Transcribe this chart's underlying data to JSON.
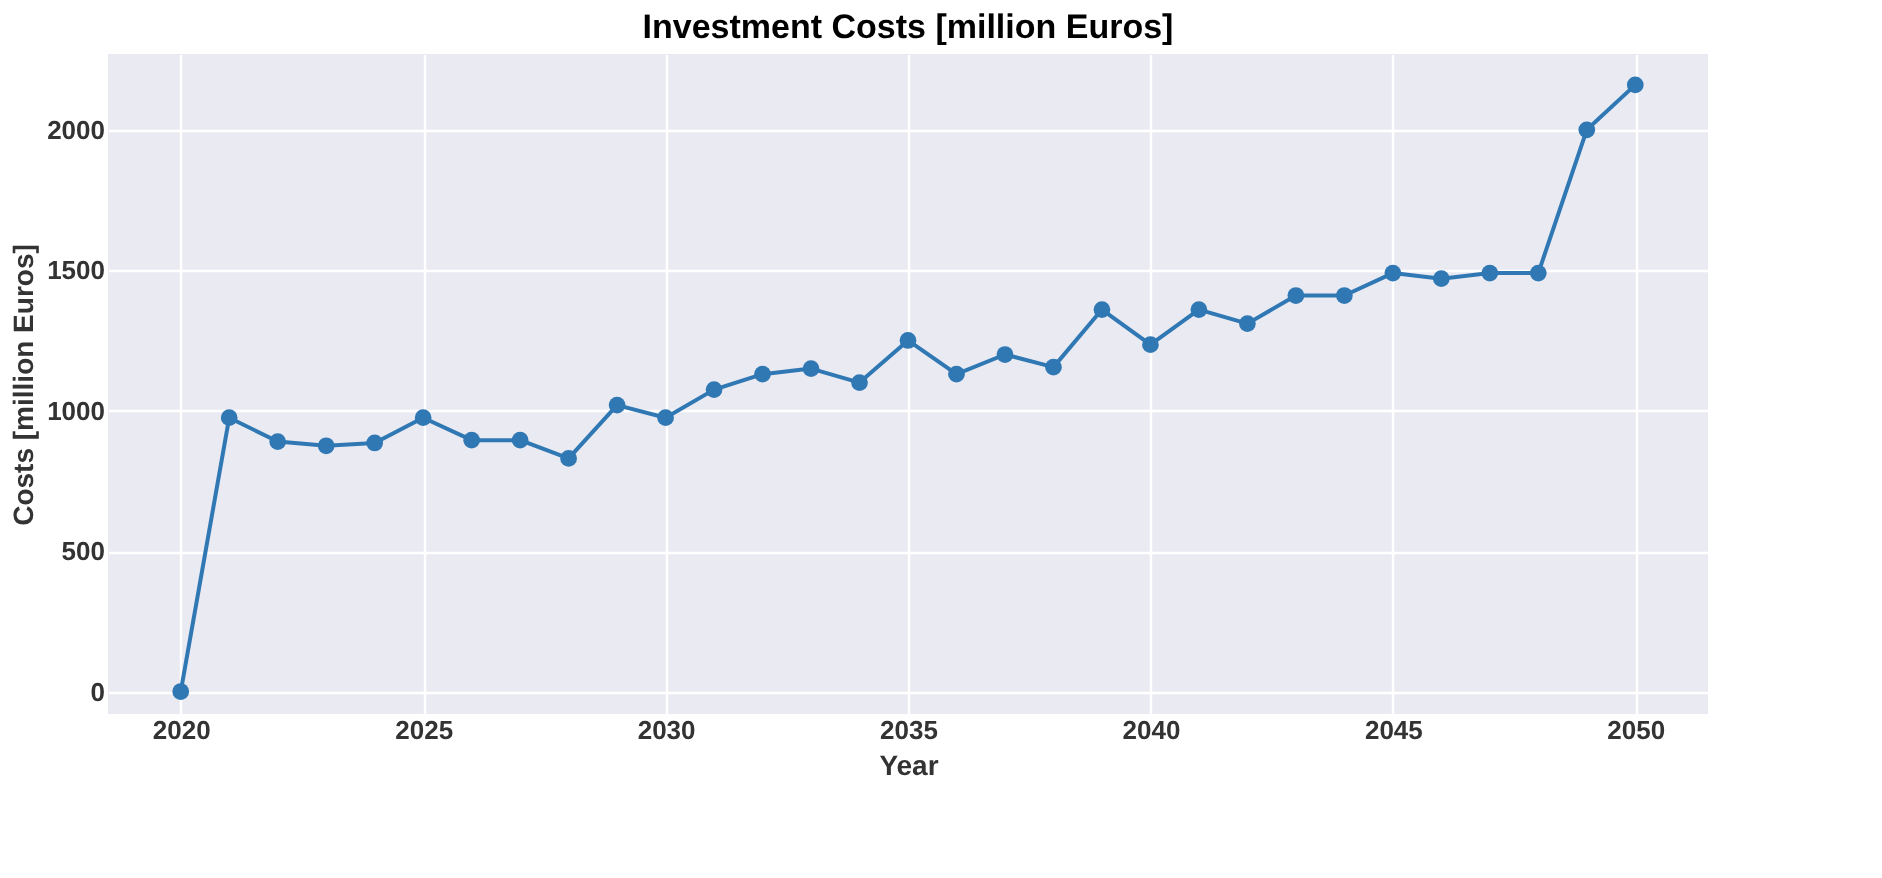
{
  "chart_data": {
    "type": "line",
    "title": "Investment Costs [million Euros]",
    "xlabel": "Year",
    "ylabel": "Costs [million Euros]",
    "x": [
      2020,
      2021,
      2022,
      2023,
      2024,
      2025,
      2026,
      2027,
      2028,
      2029,
      2030,
      2031,
      2032,
      2033,
      2034,
      2035,
      2036,
      2037,
      2038,
      2039,
      2040,
      2041,
      2042,
      2043,
      2044,
      2045,
      2046,
      2047,
      2048,
      2049,
      2050
    ],
    "series": [
      {
        "color": "#2f78b4",
        "values": [
          0,
          975,
          890,
          875,
          885,
          975,
          895,
          895,
          830,
          1020,
          975,
          1075,
          1130,
          1150,
          1100,
          1250,
          1130,
          1200,
          1155,
          1360,
          1235,
          1360,
          1310,
          1410,
          1410,
          1490,
          1470,
          1490,
          1490,
          2000,
          2160
        ]
      }
    ],
    "xlim": [
      2018.5,
      2051.5
    ],
    "xticks": [
      2020,
      2025,
      2030,
      2035,
      2040,
      2045,
      2050
    ],
    "ylim": [
      -80,
      2270
    ],
    "yticks": [
      0,
      500,
      1000,
      1500,
      2000
    ],
    "grid": true,
    "marker": "circle",
    "line_style": "solid"
  }
}
